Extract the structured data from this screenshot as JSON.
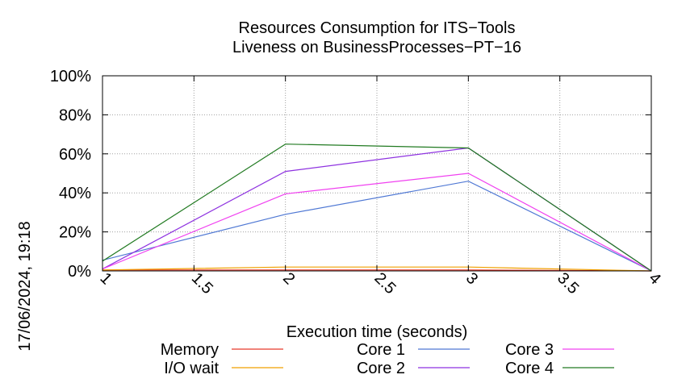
{
  "chart_data": {
    "type": "line",
    "title": "Resources Consumption for ITS−Tools",
    "subtitle": "Liveness on BusinessProcesses−PT−16",
    "xlabel": "Execution time (seconds)",
    "ylabel": "",
    "timestamp": "17/06/2024, 19:18",
    "xlim": [
      1,
      4
    ],
    "ylim": [
      0,
      100
    ],
    "x_ticks": [
      1,
      1.5,
      2,
      2.5,
      3,
      3.5,
      4
    ],
    "x_tick_labels": [
      "1",
      "1.5",
      "2",
      "2.5",
      "3",
      "3.5",
      "4"
    ],
    "y_ticks": [
      0,
      20,
      40,
      60,
      80,
      100
    ],
    "y_tick_labels": [
      "0%",
      "20%",
      "40%",
      "60%",
      "80%",
      "100%"
    ],
    "grid": true,
    "legend_position": "bottom",
    "series": [
      {
        "name": "Memory",
        "color": "#e8392a",
        "x": [
          1,
          2,
          3,
          4
        ],
        "y": [
          0.5,
          0.5,
          0.5,
          0
        ]
      },
      {
        "name": "I/O wait",
        "color": "#f0a000",
        "x": [
          1,
          2,
          3,
          4
        ],
        "y": [
          0.5,
          2,
          2,
          0
        ]
      },
      {
        "name": "Core 1",
        "color": "#4f78d4",
        "x": [
          1,
          2,
          3,
          4
        ],
        "y": [
          5.5,
          29,
          46,
          0
        ]
      },
      {
        "name": "Core 2",
        "color": "#8e32e0",
        "x": [
          1,
          2,
          3,
          4
        ],
        "y": [
          1,
          51,
          63,
          0
        ]
      },
      {
        "name": "Core 3",
        "color": "#f040f0",
        "x": [
          1,
          2,
          3,
          4
        ],
        "y": [
          1,
          39.5,
          50,
          0
        ]
      },
      {
        "name": "Core 4",
        "color": "#217a21",
        "x": [
          1,
          2,
          3,
          4
        ],
        "y": [
          5,
          65,
          63,
          0
        ]
      }
    ]
  }
}
